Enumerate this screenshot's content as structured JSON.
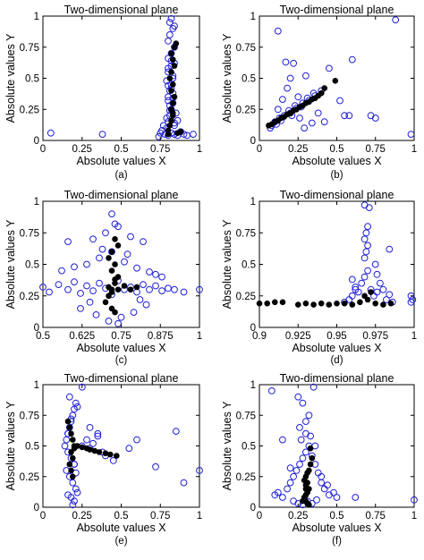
{
  "style": {
    "open_marker_color": "#1f1fd6",
    "filled_marker_color": "#000000",
    "axis_color": "#000000"
  },
  "chart_data": [
    {
      "type": "scatter",
      "caption": "(a)",
      "title": "Two-dimensional plane",
      "xlabel": "Absolute values X",
      "ylabel": "Absolute values Y",
      "xlim": [
        0,
        1
      ],
      "ylim": [
        0,
        1
      ],
      "xticks": [
        0,
        0.25,
        0.5,
        0.75,
        1
      ],
      "xtick_labels": [
        "0",
        "0.25",
        "0.5",
        "0.75",
        "1"
      ],
      "yticks": [
        0,
        0.25,
        0.5,
        0.75,
        1
      ],
      "ytick_labels": [
        "0",
        "0.25",
        "0.5",
        "0.75",
        "1"
      ],
      "series": [
        {
          "marker": "open-circle",
          "x": [
            0.05,
            0.38,
            0.74,
            0.75,
            0.76,
            0.78,
            0.8,
            0.82,
            0.84,
            0.86,
            0.88,
            0.9,
            0.92,
            0.96,
            0.79,
            0.8,
            0.81,
            0.82,
            0.83,
            0.84,
            0.8,
            0.81,
            0.82,
            0.83,
            0.8,
            0.82,
            0.84,
            0.79,
            0.81,
            0.83,
            0.85,
            0.8,
            0.82,
            0.84,
            0.8,
            0.81,
            0.83,
            0.81,
            0.82,
            0.84,
            0.8,
            0.82,
            0.79,
            0.83,
            0.8,
            0.84,
            0.81,
            0.83,
            0.8,
            0.82,
            0.77,
            0.86
          ],
          "y": [
            0.06,
            0.05,
            0.03,
            0.06,
            0.08,
            0.05,
            0.04,
            0.06,
            0.05,
            0.04,
            0.07,
            0.05,
            0.04,
            0.05,
            0.1,
            0.15,
            0.2,
            0.25,
            0.3,
            0.12,
            0.35,
            0.4,
            0.45,
            0.5,
            0.55,
            0.6,
            0.62,
            0.18,
            0.28,
            0.38,
            0.22,
            0.66,
            0.7,
            0.75,
            0.8,
            0.85,
            0.9,
            0.95,
            0.98,
            0.92,
            0.32,
            0.42,
            0.48,
            0.52,
            0.58,
            0.14,
            0.24,
            0.34,
            0.44,
            0.64,
            0.12,
            0.16
          ]
        },
        {
          "marker": "filled-circle",
          "x": [
            0.8,
            0.81,
            0.82,
            0.83,
            0.82,
            0.83,
            0.84,
            0.82,
            0.83,
            0.81,
            0.82,
            0.84,
            0.83,
            0.82,
            0.84,
            0.85,
            0.86,
            0.8,
            0.88,
            0.83
          ],
          "y": [
            0.08,
            0.12,
            0.16,
            0.2,
            0.25,
            0.3,
            0.35,
            0.4,
            0.45,
            0.5,
            0.55,
            0.6,
            0.65,
            0.7,
            0.75,
            0.78,
            0.06,
            0.05,
            0.07,
            0.22
          ]
        }
      ]
    },
    {
      "type": "scatter",
      "caption": "(b)",
      "title": "Two-dimensional plane",
      "xlabel": "Absolute values X",
      "ylabel": "Absolute values Y",
      "xlim": [
        0,
        1
      ],
      "ylim": [
        0,
        1
      ],
      "xticks": [
        0,
        0.25,
        0.5,
        0.75,
        1
      ],
      "xtick_labels": [
        "0",
        "0.25",
        "0.5",
        "0.75",
        "1"
      ],
      "yticks": [
        0,
        0.25,
        0.5,
        0.75,
        1
      ],
      "ytick_labels": [
        "0",
        "0.25",
        "0.5",
        "0.75",
        "1"
      ],
      "series": [
        {
          "marker": "open-circle",
          "x": [
            0.88,
            0.12,
            0.17,
            0.22,
            0.45,
            0.6,
            0.2,
            0.3,
            0.15,
            0.18,
            0.08,
            0.1,
            0.13,
            0.16,
            0.2,
            0.24,
            0.28,
            0.32,
            0.36,
            0.4,
            0.07,
            0.11,
            0.14,
            0.19,
            0.23,
            0.27,
            0.31,
            0.35,
            0.12,
            0.26,
            0.38,
            0.52,
            0.75,
            0.98,
            0.55,
            0.42,
            0.34,
            0.58,
            0.72,
            0.21,
            0.25,
            0.29
          ],
          "y": [
            0.97,
            0.88,
            0.63,
            0.62,
            0.58,
            0.65,
            0.5,
            0.52,
            0.33,
            0.42,
            0.12,
            0.15,
            0.18,
            0.2,
            0.22,
            0.26,
            0.3,
            0.32,
            0.36,
            0.4,
            0.1,
            0.13,
            0.16,
            0.24,
            0.28,
            0.27,
            0.34,
            0.38,
            0.25,
            0.18,
            0.22,
            0.32,
            0.18,
            0.05,
            0.2,
            0.15,
            0.14,
            0.2,
            0.2,
            0.2,
            0.35,
            0.1
          ]
        },
        {
          "marker": "filled-circle",
          "x": [
            0.06,
            0.08,
            0.1,
            0.12,
            0.14,
            0.16,
            0.18,
            0.2,
            0.22,
            0.24,
            0.26,
            0.28,
            0.3,
            0.32,
            0.34,
            0.36,
            0.38,
            0.4,
            0.42,
            0.49
          ],
          "y": [
            0.12,
            0.13,
            0.15,
            0.16,
            0.18,
            0.19,
            0.21,
            0.22,
            0.24,
            0.25,
            0.27,
            0.28,
            0.3,
            0.31,
            0.33,
            0.34,
            0.36,
            0.38,
            0.42,
            0.48
          ]
        }
      ]
    },
    {
      "type": "scatter",
      "caption": "(c)",
      "title": "Two-dimensional plane",
      "xlabel": "Absolute values X",
      "ylabel": "Absolute values Y",
      "xlim": [
        0.5,
        1
      ],
      "ylim": [
        0,
        1
      ],
      "xticks": [
        0.5,
        0.625,
        0.75,
        0.875,
        1
      ],
      "xtick_labels": [
        "0.5",
        "0.625",
        "0.75",
        "0.875",
        "1"
      ],
      "yticks": [
        0,
        0.25,
        0.5,
        0.75,
        1
      ],
      "ytick_labels": [
        "0",
        "0.25",
        "0.5",
        "0.75",
        "1"
      ],
      "series": [
        {
          "marker": "open-circle",
          "x": [
            0.5,
            0.52,
            0.55,
            0.58,
            0.6,
            0.62,
            0.64,
            0.66,
            0.68,
            0.7,
            0.72,
            0.74,
            0.76,
            0.78,
            0.8,
            0.82,
            0.84,
            0.86,
            0.88,
            0.9,
            0.92,
            0.95,
            1.0,
            0.56,
            0.6,
            0.64,
            0.68,
            0.72,
            0.76,
            0.8,
            0.84,
            0.88,
            0.66,
            0.7,
            0.74,
            0.78,
            0.82,
            0.62,
            0.67,
            0.71,
            0.75,
            0.79,
            0.83,
            0.73,
            0.69,
            0.77,
            0.65,
            0.81,
            0.74,
            0.72,
            0.86,
            0.58
          ],
          "y": [
            0.32,
            0.28,
            0.34,
            0.3,
            0.36,
            0.27,
            0.33,
            0.29,
            0.35,
            0.31,
            0.26,
            0.37,
            0.3,
            0.32,
            0.28,
            0.34,
            0.3,
            0.33,
            0.29,
            0.31,
            0.3,
            0.28,
            0.3,
            0.45,
            0.48,
            0.5,
            0.55,
            0.6,
            0.52,
            0.47,
            0.44,
            0.4,
            0.7,
            0.75,
            0.8,
            0.72,
            0.68,
            0.15,
            0.1,
            0.05,
            0.08,
            0.12,
            0.18,
            0.82,
            0.62,
            0.58,
            0.2,
            0.22,
            0.03,
            0.9,
            0.42,
            0.68
          ]
        },
        {
          "marker": "filled-circle",
          "x": [
            0.7,
            0.71,
            0.72,
            0.73,
            0.74,
            0.72,
            0.73,
            0.71,
            0.72,
            0.74,
            0.73,
            0.72,
            0.73,
            0.74,
            0.71,
            0.72,
            0.73,
            0.76,
            0.78,
            0.8
          ],
          "y": [
            0.2,
            0.25,
            0.3,
            0.35,
            0.4,
            0.45,
            0.5,
            0.55,
            0.6,
            0.65,
            0.7,
            0.15,
            0.12,
            0.3,
            0.32,
            0.28,
            0.38,
            0.33,
            0.3,
            0.32
          ]
        }
      ]
    },
    {
      "type": "scatter",
      "caption": "(d)",
      "title": "Two-dimensional plane",
      "xlabel": "Absolute values X",
      "ylabel": "Absolute values Y",
      "xlim": [
        0.9,
        1
      ],
      "ylim": [
        0,
        1
      ],
      "xticks": [
        0.9,
        0.925,
        0.95,
        0.975,
        1
      ],
      "xtick_labels": [
        "0.9",
        "0.925",
        "0.95",
        "0.975",
        "1"
      ],
      "yticks": [
        0,
        0.25,
        0.5,
        0.75,
        1
      ],
      "ytick_labels": [
        "0",
        "0.25",
        "0.5",
        "0.75",
        "1"
      ],
      "series": [
        {
          "marker": "open-circle",
          "x": [
            0.955,
            0.958,
            0.96,
            0.962,
            0.964,
            0.966,
            0.968,
            0.97,
            0.972,
            0.974,
            0.976,
            0.978,
            0.98,
            0.982,
            0.984,
            0.986,
            0.968,
            0.969,
            0.97,
            0.968,
            0.969,
            0.97,
            0.971,
            0.968,
            0.975,
            0.976,
            0.96,
            0.962,
            0.984,
            0.998,
            0.999,
            0.998
          ],
          "y": [
            0.2,
            0.22,
            0.25,
            0.3,
            0.28,
            0.35,
            0.4,
            0.45,
            0.3,
            0.25,
            0.28,
            0.35,
            0.3,
            0.22,
            0.26,
            0.2,
            0.55,
            0.6,
            0.65,
            0.7,
            0.75,
            0.8,
            0.95,
            0.97,
            0.5,
            0.42,
            0.38,
            0.32,
            0.62,
            0.25,
            0.22,
            0.2
          ]
        },
        {
          "marker": "filled-circle",
          "x": [
            0.9,
            0.905,
            0.91,
            0.915,
            0.925,
            0.93,
            0.935,
            0.94,
            0.945,
            0.95,
            0.955,
            0.96,
            0.965,
            0.97,
            0.975,
            0.98,
            0.985,
            0.968,
            0.972
          ],
          "y": [
            0.19,
            0.19,
            0.2,
            0.2,
            0.18,
            0.19,
            0.18,
            0.19,
            0.18,
            0.19,
            0.19,
            0.18,
            0.2,
            0.22,
            0.19,
            0.18,
            0.19,
            0.25,
            0.28
          ]
        }
      ]
    },
    {
      "type": "scatter",
      "caption": "(e)",
      "title": "Two-dimensional plane",
      "xlabel": "Absolute values X",
      "ylabel": "Absolute values Y",
      "xlim": [
        0,
        1
      ],
      "ylim": [
        0,
        1
      ],
      "xticks": [
        0,
        0.25,
        0.5,
        0.75,
        1
      ],
      "xtick_labels": [
        "0",
        "0.25",
        "0.5",
        "0.75",
        "1"
      ],
      "yticks": [
        0,
        0.25,
        0.5,
        0.75,
        1
      ],
      "ytick_labels": [
        "0",
        "0.25",
        "0.5",
        "0.75",
        "1"
      ],
      "series": [
        {
          "marker": "open-circle",
          "x": [
            0.14,
            0.15,
            0.16,
            0.17,
            0.18,
            0.19,
            0.2,
            0.21,
            0.22,
            0.16,
            0.18,
            0.2,
            0.15,
            0.17,
            0.19,
            0.21,
            0.16,
            0.18,
            0.2,
            0.22,
            0.25,
            0.28,
            0.3,
            0.32,
            0.35,
            0.4,
            0.45,
            0.55,
            0.6,
            0.85,
            0.9,
            1.0,
            0.72,
            0.25,
            0.3,
            0.35,
            0.38,
            0.17,
            0.19,
            0.16,
            0.18,
            0.2,
            0.21
          ],
          "y": [
            0.5,
            0.55,
            0.6,
            0.65,
            0.7,
            0.75,
            0.8,
            0.85,
            0.82,
            0.45,
            0.4,
            0.35,
            0.3,
            0.25,
            0.2,
            0.15,
            0.1,
            0.08,
            0.05,
            0.12,
            0.5,
            0.55,
            0.48,
            0.52,
            0.58,
            0.42,
            0.38,
            0.48,
            0.55,
            0.62,
            0.2,
            0.3,
            0.33,
            0.98,
            0.65,
            0.6,
            0.45,
            0.9,
            0.02,
            0.6,
            0.72,
            0.35,
            0.28
          ]
        },
        {
          "marker": "filled-circle",
          "x": [
            0.16,
            0.17,
            0.18,
            0.19,
            0.2,
            0.18,
            0.19,
            0.17,
            0.18,
            0.19,
            0.2,
            0.22,
            0.25,
            0.28,
            0.3,
            0.33,
            0.36,
            0.4,
            0.43,
            0.47
          ],
          "y": [
            0.7,
            0.65,
            0.6,
            0.55,
            0.5,
            0.45,
            0.4,
            0.35,
            0.3,
            0.25,
            0.48,
            0.5,
            0.49,
            0.48,
            0.47,
            0.46,
            0.45,
            0.44,
            0.43,
            0.42
          ]
        }
      ]
    },
    {
      "type": "scatter",
      "caption": "(f)",
      "title": "Two-dimensional plane",
      "xlabel": "Absolute values X",
      "ylabel": "Absolute values Y",
      "xlim": [
        0,
        1
      ],
      "ylim": [
        0,
        1
      ],
      "xticks": [
        0,
        0.25,
        0.5,
        0.75,
        1
      ],
      "xtick_labels": [
        "0",
        "0.25",
        "0.5",
        "0.75",
        "1"
      ],
      "yticks": [
        0,
        0.25,
        0.5,
        0.75,
        1
      ],
      "ytick_labels": [
        "0",
        "0.25",
        "0.5",
        "0.75",
        "1"
      ],
      "series": [
        {
          "marker": "open-circle",
          "x": [
            0.1,
            0.12,
            0.15,
            0.18,
            0.2,
            0.22,
            0.24,
            0.26,
            0.28,
            0.3,
            0.32,
            0.34,
            0.36,
            0.38,
            0.4,
            0.42,
            0.45,
            0.48,
            0.5,
            0.22,
            0.25,
            0.28,
            0.31,
            0.34,
            0.37,
            0.27,
            0.3,
            0.33,
            0.36,
            0.08,
            0.15,
            0.25,
            0.28,
            0.35,
            0.62,
            1.0,
            0.3,
            0.26,
            0.32,
            0.2,
            0.4,
            0.44
          ],
          "y": [
            0.1,
            0.12,
            0.08,
            0.15,
            0.2,
            0.25,
            0.3,
            0.35,
            0.4,
            0.45,
            0.5,
            0.42,
            0.35,
            0.28,
            0.2,
            0.15,
            0.1,
            0.12,
            0.08,
            0.05,
            0.03,
            0.02,
            0.05,
            0.03,
            0.06,
            0.55,
            0.6,
            0.58,
            0.5,
            0.95,
            0.55,
            0.9,
            0.85,
            0.98,
            0.08,
            0.06,
            0.7,
            0.65,
            0.75,
            0.32,
            0.25,
            0.18
          ]
        },
        {
          "marker": "filled-circle",
          "x": [
            0.28,
            0.29,
            0.3,
            0.31,
            0.32,
            0.3,
            0.31,
            0.29,
            0.3,
            0.31,
            0.32,
            0.33,
            0.34,
            0.3,
            0.31,
            0.32,
            0.33,
            0.3
          ],
          "y": [
            0.05,
            0.08,
            0.1,
            0.12,
            0.15,
            0.18,
            0.2,
            0.22,
            0.25,
            0.28,
            0.3,
            0.35,
            0.4,
            0.05,
            0.03,
            0.02,
            0.48,
            0.15
          ]
        }
      ]
    }
  ]
}
